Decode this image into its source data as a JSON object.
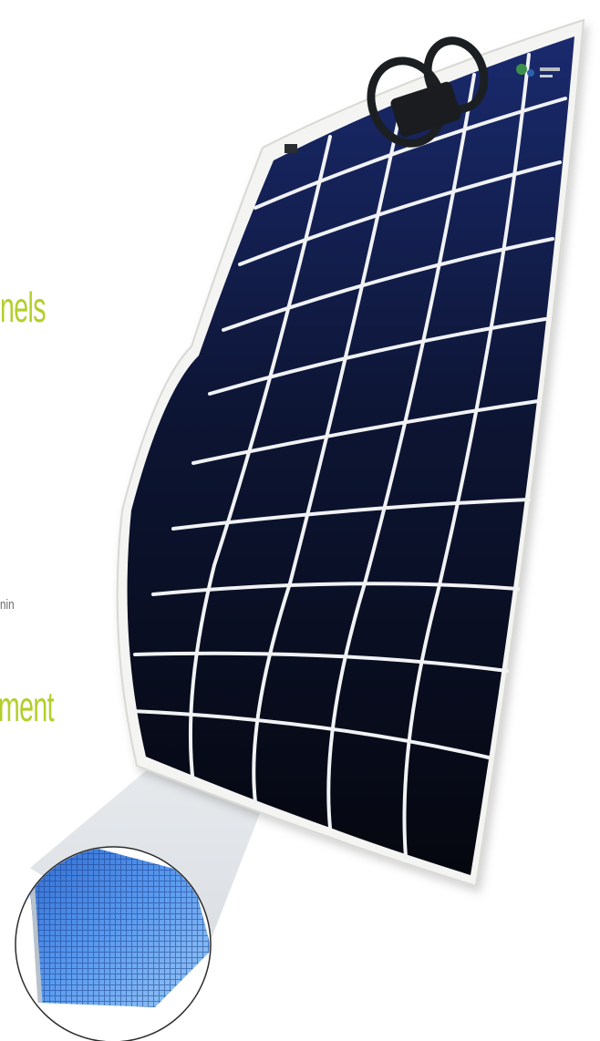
{
  "text": {
    "heading_top": "nels",
    "fragment": "nin",
    "heading_bottom": "ment"
  },
  "colors": {
    "heading": "#b2cf2a",
    "body_text": "#6b6b6b",
    "panel_frame": "#f4f4f2",
    "cell_dark": "#080c1c",
    "cell_light": "#1a2a6e",
    "grid_line": "#f0f2f4",
    "zoom_cell": "#3d7bd6"
  },
  "icons": {
    "connector": "junction-box-icon",
    "logo": "manufacturer-logo"
  }
}
